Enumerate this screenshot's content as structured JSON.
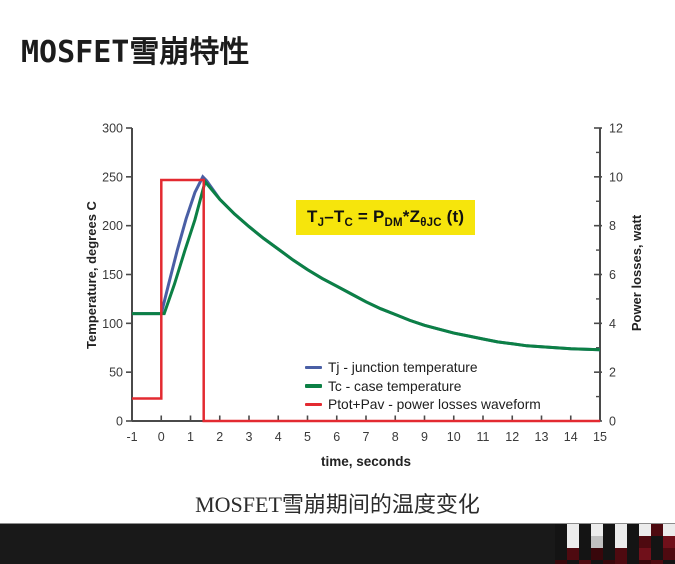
{
  "slide": {
    "title": "MOSFET雪崩特性",
    "caption": "MOSFET雪崩期间的温度变化"
  },
  "formula": {
    "bg_color": "#f6e50c",
    "parts": [
      {
        "t": "T"
      },
      {
        "t": "J",
        "sub": true
      },
      {
        "t": "–T"
      },
      {
        "t": "C",
        "sub": true
      },
      {
        "t": " = P"
      },
      {
        "t": "DM",
        "sub": true
      },
      {
        "t": "*Z"
      },
      {
        "t": "θJC",
        "sub": true
      },
      {
        "t": " (t)"
      }
    ]
  },
  "chart_data": {
    "type": "line",
    "title": "",
    "axis_color": "#4a4a4a",
    "tick_label_color": "#3a3a3a",
    "x_axis": {
      "label": "time, seconds",
      "min": -1,
      "max": 15,
      "ticks": [
        -1,
        0,
        1,
        2,
        3,
        4,
        5,
        6,
        7,
        8,
        9,
        10,
        11,
        12,
        13,
        14,
        15
      ]
    },
    "y_left": {
      "label": "Temperature, degrees C",
      "min": 0,
      "max": 300,
      "ticks": [
        0,
        50,
        100,
        150,
        200,
        250,
        300
      ]
    },
    "y_right": {
      "label": "Power losses, watt",
      "min": 0,
      "max": 12,
      "ticks": [
        0,
        2,
        4,
        6,
        8,
        10,
        12
      ],
      "minor_ticks": [
        1,
        3,
        5,
        7,
        9,
        11
      ]
    },
    "grid": false,
    "legend_position": "inside-bottom-right",
    "series": [
      {
        "name": "Tj - junction temperature",
        "color": "#4a5fa5",
        "axis": "left",
        "width": 3,
        "points": [
          [
            -1,
            110
          ],
          [
            0,
            110
          ],
          [
            0.25,
            140
          ],
          [
            0.55,
            175
          ],
          [
            0.85,
            207
          ],
          [
            1.15,
            234
          ],
          [
            1.42,
            250
          ],
          [
            1.55,
            246
          ],
          [
            2,
            227
          ],
          [
            2.5,
            212
          ],
          [
            3,
            199
          ],
          [
            3.5,
            187
          ],
          [
            4,
            176
          ],
          [
            4.5,
            165
          ],
          [
            5,
            155
          ],
          [
            5.5,
            146
          ],
          [
            6,
            138
          ],
          [
            6.5,
            130
          ],
          [
            7,
            122
          ],
          [
            7.5,
            115
          ],
          [
            8,
            109
          ],
          [
            8.5,
            103
          ],
          [
            9,
            98
          ],
          [
            9.5,
            94
          ],
          [
            10,
            90
          ],
          [
            10.5,
            87
          ],
          [
            11,
            84
          ],
          [
            11.5,
            81
          ],
          [
            12,
            79
          ],
          [
            12.5,
            77
          ],
          [
            13,
            76
          ],
          [
            13.5,
            75
          ],
          [
            14,
            74
          ],
          [
            14.5,
            73.5
          ],
          [
            15,
            73
          ]
        ]
      },
      {
        "name": "Tc - case temperature",
        "color": "#0c8045",
        "axis": "left",
        "width": 3,
        "points": [
          [
            -1,
            110
          ],
          [
            0.1,
            110
          ],
          [
            0.45,
            140
          ],
          [
            0.8,
            174
          ],
          [
            1.15,
            206
          ],
          [
            1.5,
            245
          ],
          [
            2,
            227
          ],
          [
            2.5,
            212
          ],
          [
            3,
            199
          ],
          [
            3.5,
            187
          ],
          [
            4,
            176
          ],
          [
            4.5,
            165
          ],
          [
            5,
            155
          ],
          [
            5.5,
            146
          ],
          [
            6,
            138
          ],
          [
            6.5,
            130
          ],
          [
            7,
            122
          ],
          [
            7.5,
            115
          ],
          [
            8,
            109
          ],
          [
            8.5,
            103
          ],
          [
            9,
            98
          ],
          [
            9.5,
            94
          ],
          [
            10,
            90
          ],
          [
            10.5,
            87
          ],
          [
            11,
            84
          ],
          [
            11.5,
            81
          ],
          [
            12,
            79
          ],
          [
            12.5,
            77
          ],
          [
            13,
            76
          ],
          [
            13.5,
            75
          ],
          [
            14,
            74
          ],
          [
            14.5,
            73.5
          ],
          [
            15,
            73
          ]
        ]
      },
      {
        "name": "Ptot+Pav - power losses waveform",
        "color": "#e32a31",
        "axis": "right",
        "width": 2.5,
        "points": [
          [
            -1,
            0.92
          ],
          [
            0,
            0.92
          ],
          [
            0,
            9.87
          ],
          [
            1.45,
            9.87
          ],
          [
            1.45,
            0
          ],
          [
            15,
            0
          ]
        ]
      }
    ]
  },
  "footer": {
    "bar_color": "#191919",
    "checker_rows": [
      [
        "#141414",
        "#ececec",
        "#141414",
        "#ececec",
        "#141414",
        "#ececec",
        "#141414",
        "#ececec",
        "#4e0a10",
        "#ececec"
      ],
      [
        "#141414",
        "#ececec",
        "#141414",
        "#c0c0c0",
        "#141414",
        "#ececec",
        "#141414",
        "#4e0a10",
        "#141414",
        "#70101a"
      ],
      [
        "#141414",
        "#4e0a10",
        "#141414",
        "#38070b",
        "#141414",
        "#4e0a10",
        "#141414",
        "#70101a",
        "#141414",
        "#4e0a10"
      ],
      [
        "#38070b",
        "#141414",
        "#4e0a10",
        "#141414",
        "#38070b",
        "#4e0a10",
        "#141414",
        "#38070b",
        "#4e0a10",
        "#141414"
      ]
    ]
  }
}
